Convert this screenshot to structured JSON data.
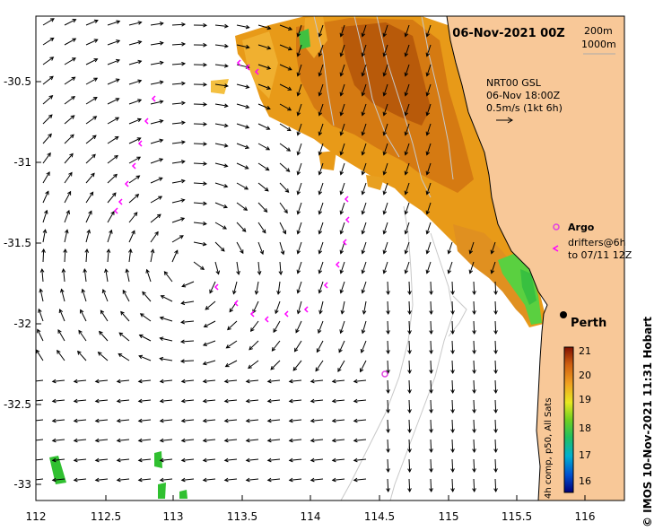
{
  "title": "06-Nov-2021 00Z",
  "contour_legend": {
    "c200": "200m",
    "c1000": "1000m"
  },
  "altimetry": {
    "label": "NRT00 GSL",
    "date": "06-Nov 18:00Z",
    "scale": "0.5m/s (1kt 6h)"
  },
  "legend": {
    "argo_label": "Argo",
    "drifters_label_1": "drifters@6h",
    "drifters_label_2": "to 07/11 12Z"
  },
  "place": {
    "name": "Perth"
  },
  "colorbar": {
    "title": "4h comp, p50, All Sats",
    "ticks": [
      "21",
      "20",
      "19",
      "18",
      "17",
      "16"
    ]
  },
  "x_ticks": [
    "112",
    "112.5",
    "113",
    "113.5",
    "114",
    "114.5",
    "115",
    "115.5",
    "116"
  ],
  "y_ticks": [
    "-30.5",
    "-31",
    "-31.5",
    "-32",
    "-32.5",
    "-33"
  ],
  "credit": "© IMOS 10-Nov-2021 11:31 Hobart",
  "colors": {
    "land": "#f8c898",
    "argo": "#e040e0",
    "drifter": "#ff00ff",
    "warm": "#d88010",
    "hot": "#b85a0a",
    "mild": "#f0a020",
    "green": "#5ad040"
  }
}
